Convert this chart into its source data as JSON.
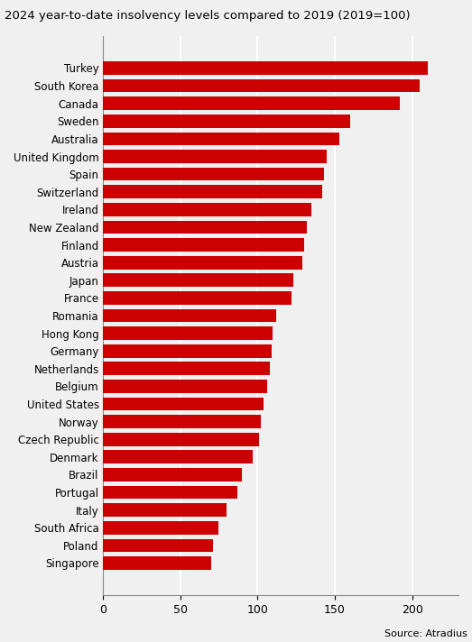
{
  "title": "2024 year-to-date insolvency levels compared to 2019 (2019=100)",
  "source": "Source: Atradius",
  "bar_color": "#cc0000",
  "background_color": "#f0f0f0",
  "xlim": [
    0,
    230
  ],
  "xticks": [
    0,
    50,
    100,
    150,
    200
  ],
  "countries": [
    "Turkey",
    "South Korea",
    "Canada",
    "Sweden",
    "Australia",
    "United Kingdom",
    "Spain",
    "Switzerland",
    "Ireland",
    "New Zealand",
    "Finland",
    "Austria",
    "Japan",
    "France",
    "Romania",
    "Hong Kong",
    "Germany",
    "Netherlands",
    "Belgium",
    "United States",
    "Norway",
    "Czech Republic",
    "Denmark",
    "Brazil",
    "Portugal",
    "Italy",
    "South Africa",
    "Poland",
    "Singapore"
  ],
  "values": [
    210,
    205,
    192,
    160,
    153,
    145,
    143,
    142,
    135,
    132,
    130,
    129,
    123,
    122,
    112,
    110,
    109,
    108,
    106,
    104,
    102,
    101,
    97,
    90,
    87,
    80,
    75,
    71,
    70
  ],
  "title_fontsize": 9.5,
  "ylabel_fontsize": 8.5,
  "xlabel_fontsize": 9,
  "bar_height": 0.75,
  "grid_color": "#ffffff",
  "grid_linewidth": 1.5
}
